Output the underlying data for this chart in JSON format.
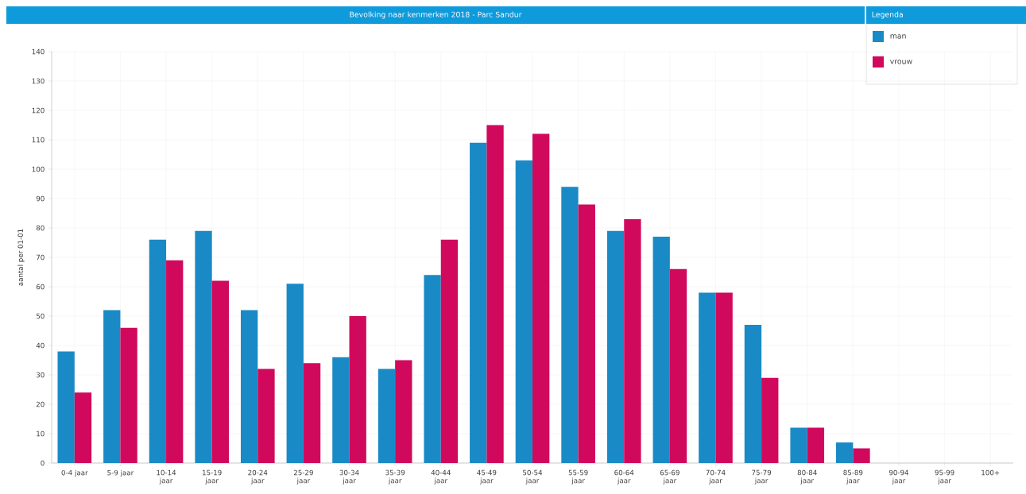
{
  "chart_data": {
    "type": "bar",
    "title": "Bevolking naar kenmerken 2018 - Parc Sandur",
    "ylabel": "aantal per 01-01",
    "legend_title": "Legenda",
    "categories": [
      "0-4 jaar",
      "5-9 jaar",
      "10-14 jaar",
      "15-19 jaar",
      "20-24 jaar",
      "25-29 jaar",
      "30-34 jaar",
      "35-39 jaar",
      "40-44 jaar",
      "45-49 jaar",
      "50-54 jaar",
      "55-59 jaar",
      "60-64 jaar",
      "65-69 jaar",
      "70-74 jaar",
      "75-79 jaar",
      "80-84 jaar",
      "85-89 jaar",
      "90-94 jaar",
      "95-99 jaar",
      "100+"
    ],
    "series": [
      {
        "name": "man",
        "color": "#1a8ac6",
        "values": [
          38,
          52,
          76,
          79,
          52,
          61,
          36,
          32,
          64,
          109,
          103,
          94,
          79,
          77,
          58,
          47,
          12,
          7,
          0,
          0,
          0
        ]
      },
      {
        "name": "vrouw",
        "color": "#d1095c",
        "values": [
          24,
          46,
          69,
          62,
          32,
          34,
          50,
          35,
          76,
          115,
          112,
          88,
          83,
          66,
          58,
          29,
          12,
          5,
          0,
          0,
          0
        ]
      }
    ],
    "ylim": [
      0,
      140
    ],
    "yticks": [
      0,
      10,
      20,
      30,
      40,
      50,
      60,
      70,
      80,
      90,
      100,
      110,
      120,
      130,
      140
    ],
    "grid": true,
    "legend": "top right"
  }
}
